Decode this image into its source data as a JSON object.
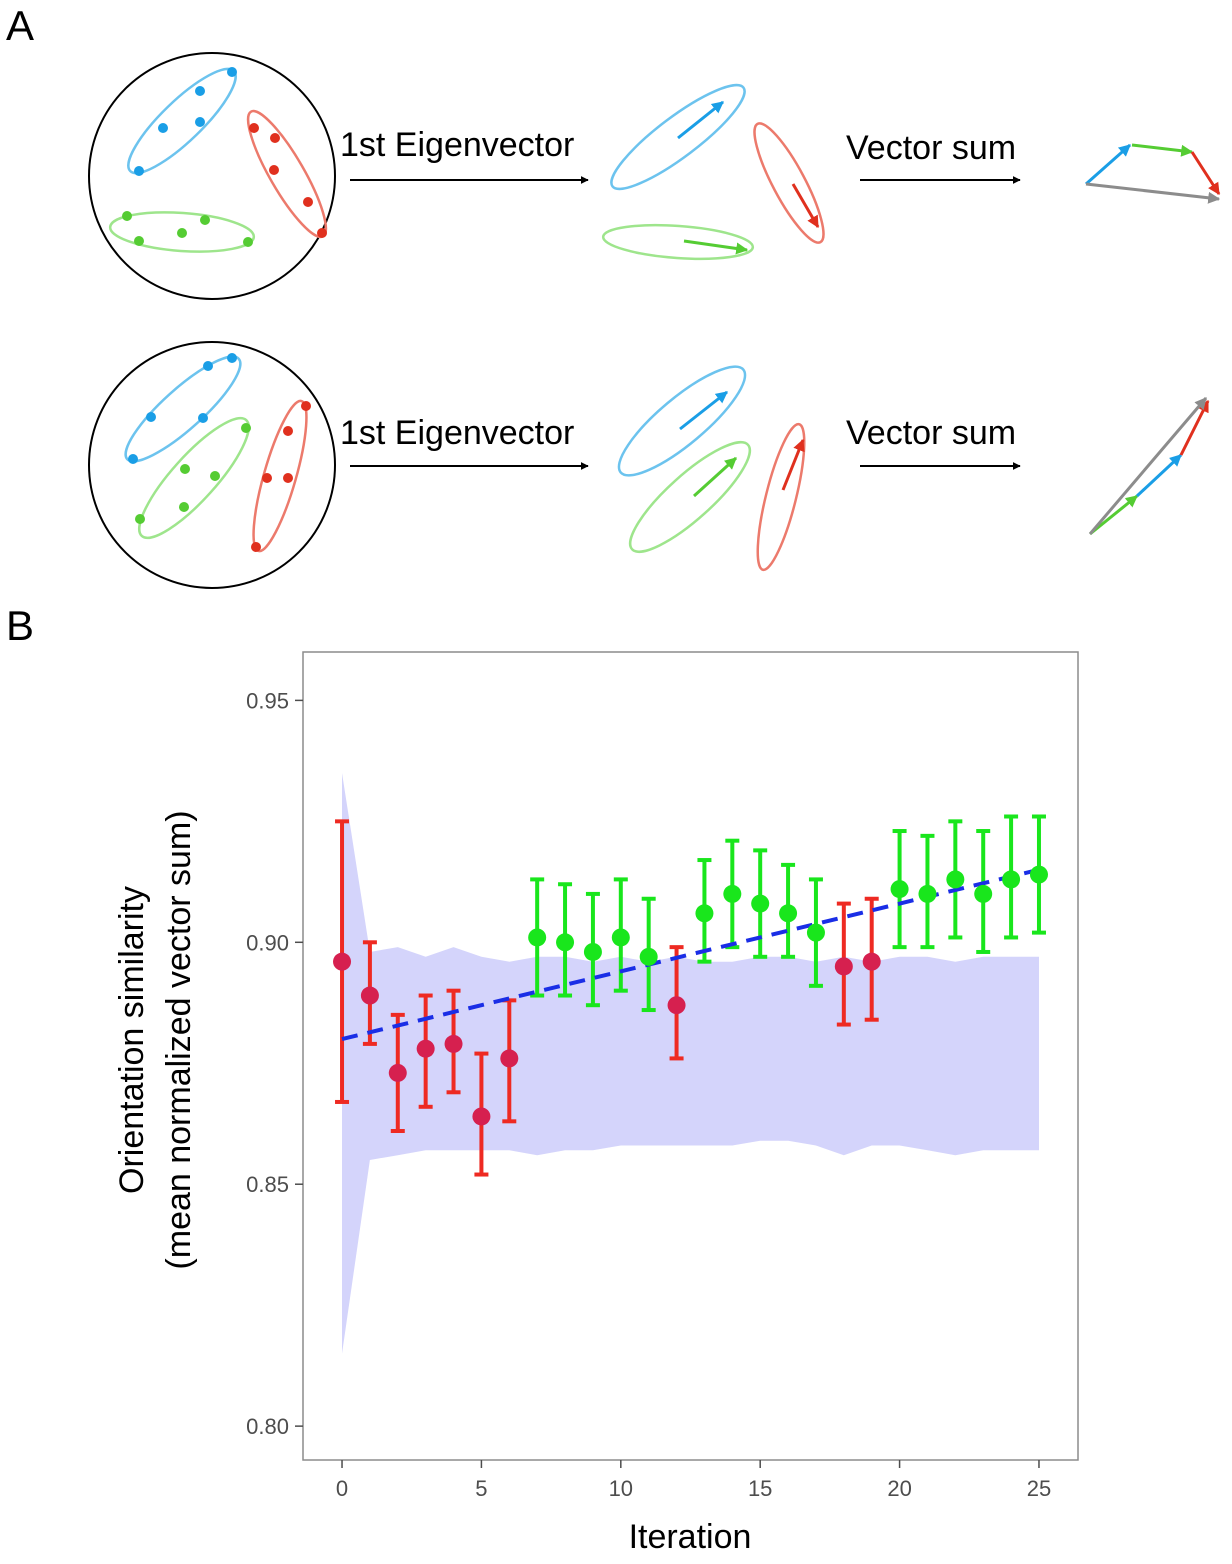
{
  "panels": {
    "a": "A",
    "b": "B"
  },
  "diagram": {
    "step1_label": "1st Eigenvector",
    "step2_label": "Vector sum",
    "colors": {
      "blue": "#1a9ee6",
      "blue_light": "#6cc3ee",
      "green": "#55cc33",
      "green_light": "#9ee58c",
      "red": "#e0301e",
      "red_light": "#ec7a6c",
      "gray": "#8c8c8c"
    }
  },
  "chart_data": {
    "type": "scatter",
    "xlabel": "Iteration",
    "ylabel_line1": "Orientation similarity",
    "ylabel_line2": "(mean normalized vector sum)",
    "xlim": [
      -1.4,
      26.4
    ],
    "ylim": [
      0.793,
      0.96
    ],
    "xticks": [
      0,
      5,
      10,
      15,
      20,
      25
    ],
    "xtick_labels": [
      "0",
      "5",
      "10",
      "15",
      "20",
      "25"
    ],
    "yticks": [
      0.8,
      0.85,
      0.9,
      0.95
    ],
    "ytick_labels": [
      "0.80",
      "0.85",
      "0.90",
      "0.95"
    ],
    "grid": false,
    "points": [
      {
        "x": 0,
        "y": 0.896,
        "lo": 0.867,
        "hi": 0.925,
        "group": "red"
      },
      {
        "x": 1,
        "y": 0.889,
        "lo": 0.879,
        "hi": 0.9,
        "group": "red"
      },
      {
        "x": 2,
        "y": 0.873,
        "lo": 0.861,
        "hi": 0.885,
        "group": "red"
      },
      {
        "x": 3,
        "y": 0.878,
        "lo": 0.866,
        "hi": 0.889,
        "group": "red"
      },
      {
        "x": 4,
        "y": 0.879,
        "lo": 0.869,
        "hi": 0.89,
        "group": "red"
      },
      {
        "x": 5,
        "y": 0.864,
        "lo": 0.852,
        "hi": 0.877,
        "group": "red"
      },
      {
        "x": 6,
        "y": 0.876,
        "lo": 0.863,
        "hi": 0.888,
        "group": "red"
      },
      {
        "x": 7,
        "y": 0.901,
        "lo": 0.889,
        "hi": 0.913,
        "group": "green"
      },
      {
        "x": 8,
        "y": 0.9,
        "lo": 0.889,
        "hi": 0.912,
        "group": "green"
      },
      {
        "x": 9,
        "y": 0.898,
        "lo": 0.887,
        "hi": 0.91,
        "group": "green"
      },
      {
        "x": 10,
        "y": 0.901,
        "lo": 0.89,
        "hi": 0.913,
        "group": "green"
      },
      {
        "x": 11,
        "y": 0.897,
        "lo": 0.886,
        "hi": 0.909,
        "group": "green"
      },
      {
        "x": 12,
        "y": 0.887,
        "lo": 0.876,
        "hi": 0.899,
        "group": "red"
      },
      {
        "x": 13,
        "y": 0.906,
        "lo": 0.896,
        "hi": 0.917,
        "group": "green"
      },
      {
        "x": 14,
        "y": 0.91,
        "lo": 0.899,
        "hi": 0.921,
        "group": "green"
      },
      {
        "x": 15,
        "y": 0.908,
        "lo": 0.897,
        "hi": 0.919,
        "group": "green"
      },
      {
        "x": 16,
        "y": 0.906,
        "lo": 0.897,
        "hi": 0.916,
        "group": "green"
      },
      {
        "x": 17,
        "y": 0.902,
        "lo": 0.891,
        "hi": 0.913,
        "group": "green"
      },
      {
        "x": 18,
        "y": 0.895,
        "lo": 0.883,
        "hi": 0.908,
        "group": "red"
      },
      {
        "x": 19,
        "y": 0.896,
        "lo": 0.884,
        "hi": 0.909,
        "group": "red"
      },
      {
        "x": 20,
        "y": 0.911,
        "lo": 0.899,
        "hi": 0.923,
        "group": "green"
      },
      {
        "x": 21,
        "y": 0.91,
        "lo": 0.899,
        "hi": 0.922,
        "group": "green"
      },
      {
        "x": 22,
        "y": 0.913,
        "lo": 0.901,
        "hi": 0.925,
        "group": "green"
      },
      {
        "x": 23,
        "y": 0.91,
        "lo": 0.898,
        "hi": 0.923,
        "group": "green"
      },
      {
        "x": 24,
        "y": 0.913,
        "lo": 0.901,
        "hi": 0.926,
        "group": "green"
      },
      {
        "x": 25,
        "y": 0.914,
        "lo": 0.902,
        "hi": 0.926,
        "group": "green"
      }
    ],
    "trend_line": {
      "x": [
        0,
        25
      ],
      "y": [
        0.88,
        0.915
      ],
      "style": "dashed",
      "color": "#1a2ee6"
    },
    "null_band": {
      "x": [
        0,
        1,
        2,
        3,
        4,
        5,
        6,
        7,
        8,
        9,
        10,
        11,
        12,
        13,
        14,
        15,
        16,
        17,
        18,
        19,
        20,
        21,
        22,
        23,
        24,
        25
      ],
      "upper": [
        0.935,
        0.898,
        0.899,
        0.897,
        0.899,
        0.897,
        0.896,
        0.897,
        0.897,
        0.896,
        0.897,
        0.896,
        0.897,
        0.896,
        0.896,
        0.897,
        0.897,
        0.896,
        0.897,
        0.896,
        0.897,
        0.897,
        0.896,
        0.897,
        0.897,
        0.897
      ],
      "lower": [
        0.815,
        0.855,
        0.856,
        0.857,
        0.857,
        0.857,
        0.857,
        0.856,
        0.857,
        0.857,
        0.858,
        0.858,
        0.858,
        0.858,
        0.858,
        0.859,
        0.859,
        0.858,
        0.856,
        0.858,
        0.858,
        0.857,
        0.856,
        0.857,
        0.857,
        0.857
      ],
      "color": "#d4d4fb"
    },
    "group_colors": {
      "red": {
        "point": "#d6204f",
        "bar": "#ee2a22"
      },
      "green": {
        "point": "#19e61c",
        "bar": "#19e61c"
      }
    }
  }
}
